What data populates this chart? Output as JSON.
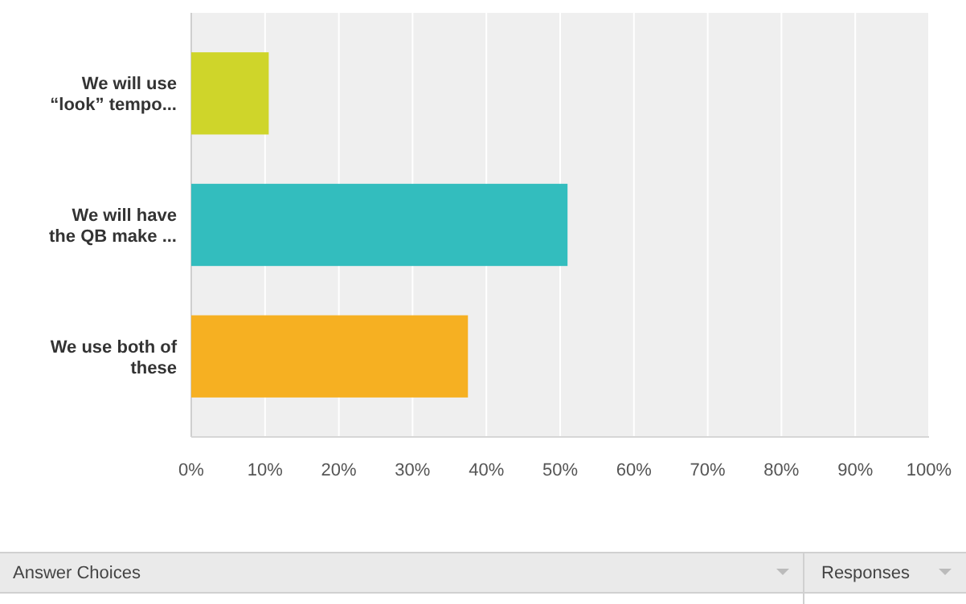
{
  "chart_data": {
    "type": "bar",
    "orientation": "horizontal",
    "categories": [
      "We will use “look” tempo...",
      "We will have the QB make ...",
      "We use both of these"
    ],
    "values": [
      10.5,
      51,
      37.5
    ],
    "colors": [
      "#cfd52a",
      "#33bdbe",
      "#f6b022"
    ],
    "xlim": [
      0,
      100
    ],
    "xticks": [
      {
        "value": 0,
        "label": "0%"
      },
      {
        "value": 10,
        "label": "10%"
      },
      {
        "value": 20,
        "label": "20%"
      },
      {
        "value": 30,
        "label": "30%"
      },
      {
        "value": 40,
        "label": "40%"
      },
      {
        "value": 50,
        "label": "50%"
      },
      {
        "value": 60,
        "label": "60%"
      },
      {
        "value": 70,
        "label": "70%"
      },
      {
        "value": 80,
        "label": "80%"
      },
      {
        "value": 90,
        "label": "90%"
      },
      {
        "value": 100,
        "label": "100%"
      }
    ],
    "grid": "x",
    "annotations": [
      "Answer Choices",
      "Responses"
    ]
  }
}
